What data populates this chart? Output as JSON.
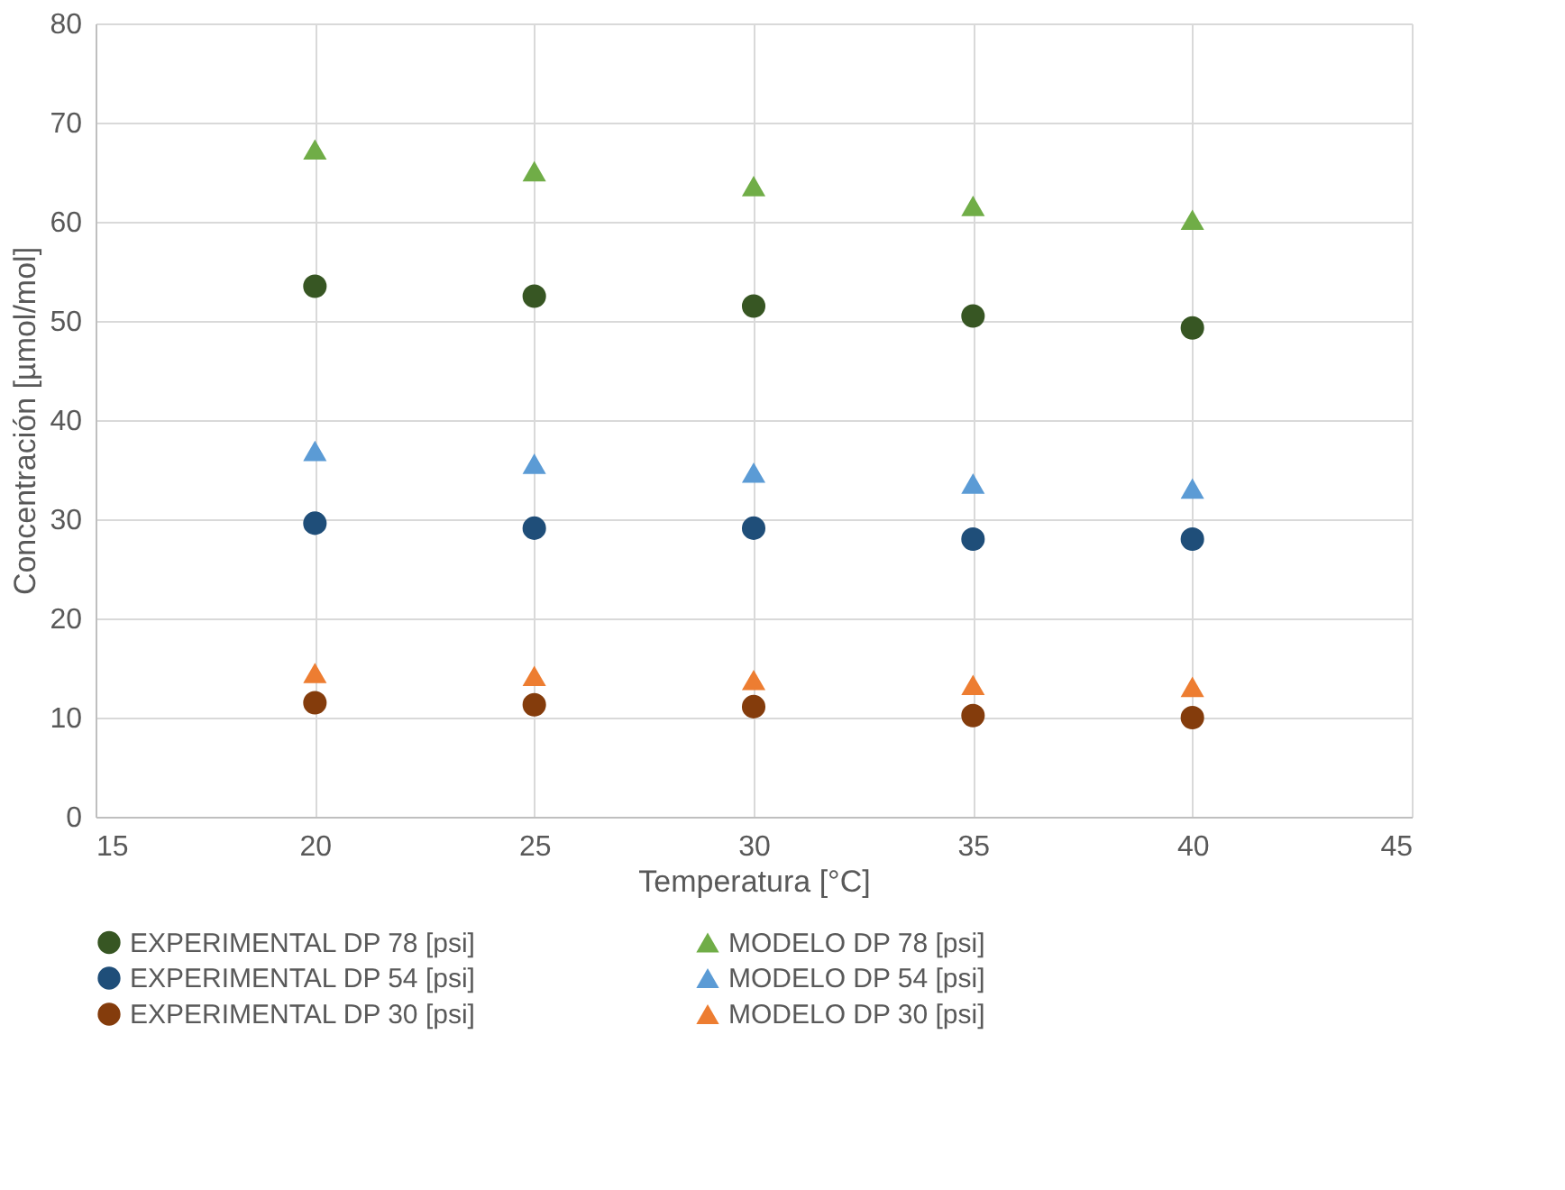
{
  "chart_data": {
    "type": "scatter",
    "xlabel": "Temperatura [°C]",
    "ylabel": "Concentración [µmol/mol]",
    "x": [
      20,
      25,
      30,
      35,
      40
    ],
    "xlim": [
      15,
      45
    ],
    "xticks": [
      15,
      20,
      25,
      30,
      35,
      40,
      45
    ],
    "ylim": [
      0,
      80
    ],
    "yticks": [
      0,
      10,
      20,
      30,
      40,
      50,
      60,
      70,
      80
    ],
    "grid": true,
    "legend": "bottom",
    "series": [
      {
        "name": "EXPERIMENTAL DP 78 [psi]",
        "color": "#375623",
        "marker": "circle",
        "values": [
          53.5,
          52.5,
          51.5,
          50.5,
          49.3
        ]
      },
      {
        "name": "MODELO DP 78 [psi]",
        "color": "#70ad47",
        "marker": "triangle",
        "values": [
          67.3,
          65.1,
          63.6,
          61.6,
          60.2
        ]
      },
      {
        "name": "EXPERIMENTAL DP 54 [psi]",
        "color": "#1f4e79",
        "marker": "circle",
        "values": [
          29.6,
          29.1,
          29.1,
          28.0,
          28.0
        ]
      },
      {
        "name": "MODELO DP 54 [psi]",
        "color": "#5b9bd5",
        "marker": "triangle",
        "values": [
          36.9,
          35.6,
          34.7,
          33.6,
          33.1
        ]
      },
      {
        "name": "EXPERIMENTAL DP 30 [psi]",
        "color": "#843c0c",
        "marker": "circle",
        "values": [
          11.5,
          11.3,
          11.1,
          10.2,
          10.0
        ]
      },
      {
        "name": "MODELO DP 30 [psi]",
        "color": "#ed7d31",
        "marker": "triangle",
        "values": [
          14.5,
          14.2,
          13.8,
          13.3,
          13.1
        ]
      }
    ]
  }
}
